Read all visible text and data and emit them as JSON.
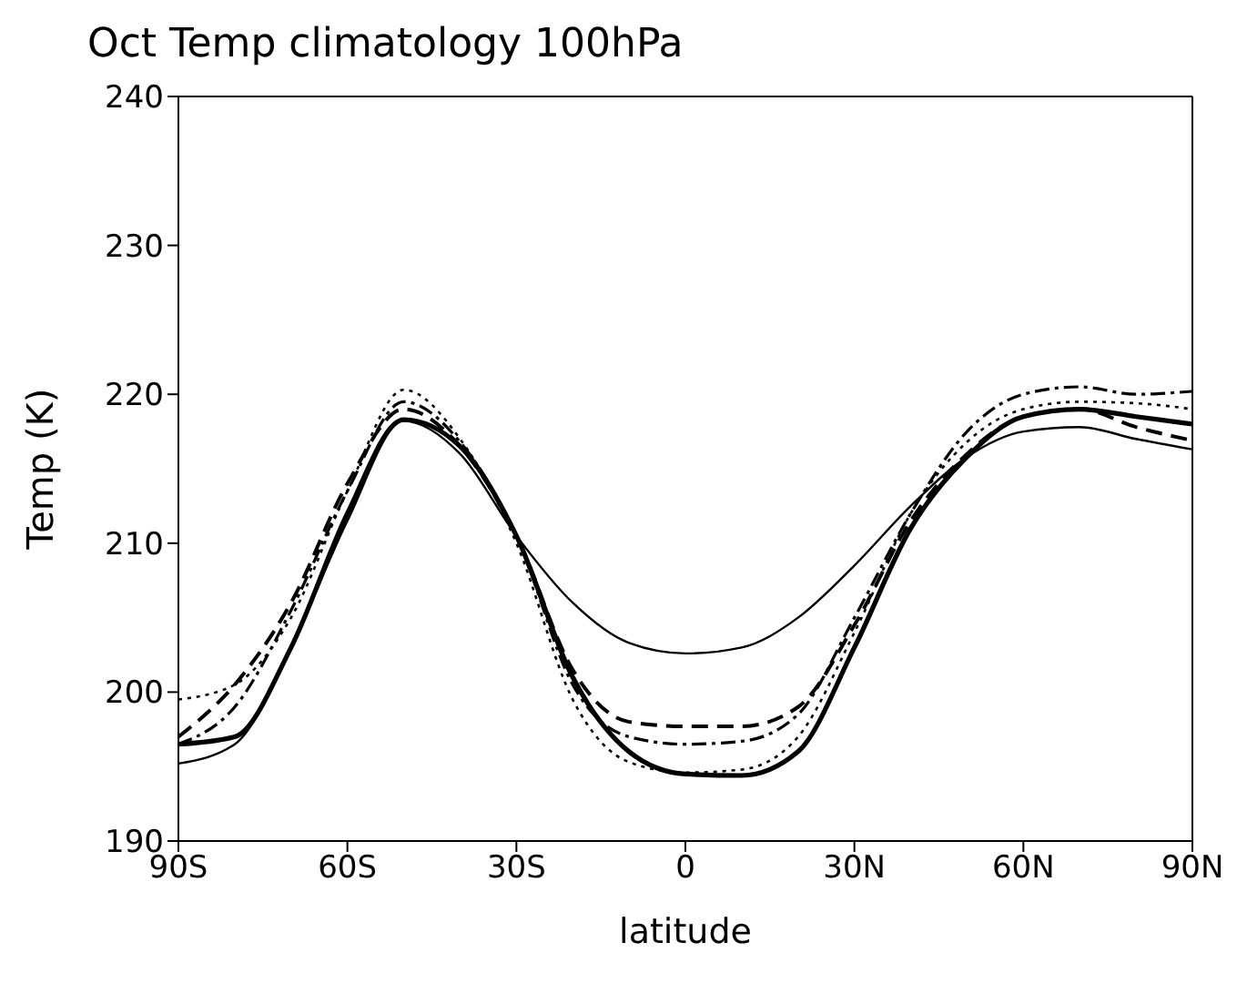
{
  "chart_data": {
    "type": "line",
    "title": "Oct Temp climatology 100hPa",
    "xlabel": "latitude",
    "ylabel": "Temp (K)",
    "x": [
      -90,
      -80,
      -70,
      -60,
      -50,
      -40,
      -30,
      -20,
      -10,
      0,
      10,
      20,
      30,
      40,
      50,
      60,
      70,
      80,
      90
    ],
    "xlim": [
      -90,
      90
    ],
    "xticks": [
      {
        "value": -90,
        "label": "90S"
      },
      {
        "value": -60,
        "label": "60S"
      },
      {
        "value": -30,
        "label": "30S"
      },
      0,
      {
        "value": 30,
        "label": "30N"
      },
      {
        "value": 60,
        "label": "60N"
      },
      {
        "value": 90,
        "label": "90N"
      }
    ],
    "ylim": [
      190,
      240
    ],
    "yticks": [
      190,
      200,
      210,
      220,
      230,
      240
    ],
    "marker": "none",
    "series": [
      {
        "color": "#000000",
        "line_style": "solid",
        "values": [
          195.2,
          196.5,
          203,
          211.5,
          218.2,
          216,
          210.5,
          206,
          203.3,
          202.6,
          203,
          205,
          208.5,
          212.5,
          215.8,
          217.5,
          217.8,
          217,
          216.3
        ]
      },
      {
        "color": "#000000",
        "line_style": "solid",
        "values": [
          196.5,
          197,
          203,
          212,
          218.3,
          216.5,
          210.5,
          201,
          196,
          194.5,
          194.4,
          196,
          203,
          211,
          215.8,
          218.5,
          219,
          218.5,
          218
        ]
      },
      {
        "color": "#000000",
        "line_style": "dashed",
        "values": [
          197,
          200.5,
          206,
          214,
          219,
          216.5,
          210.5,
          201.5,
          198,
          197.7,
          197.7,
          199,
          204.5,
          211.5,
          216,
          218.5,
          219,
          217.8,
          216.9
        ]
      },
      {
        "color": "#000000",
        "line_style": "dotted",
        "values": [
          199.5,
          200.5,
          205,
          213.5,
          220.3,
          217,
          210,
          199.5,
          195.3,
          194.6,
          194.8,
          197,
          204,
          212,
          216.8,
          219,
          219.5,
          219.4,
          219
        ]
      },
      {
        "color": "#000000",
        "line_style": "dashdot",
        "values": [
          196.5,
          199,
          205.5,
          213.5,
          219.5,
          216.8,
          210.5,
          200.5,
          197,
          196.5,
          196.7,
          198.5,
          205,
          212,
          217.5,
          220,
          220.5,
          220,
          220.2
        ]
      }
    ]
  }
}
